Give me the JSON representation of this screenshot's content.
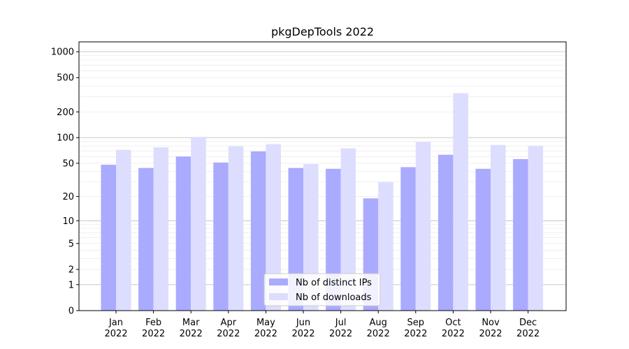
{
  "chart_data": {
    "type": "bar",
    "title": "pkgDepTools 2022",
    "xlabel": "",
    "ylabel": "",
    "y_scale": "log1p",
    "ylim": [
      0,
      1300
    ],
    "y_ticks": [
      0,
      1,
      2,
      5,
      10,
      20,
      50,
      100,
      200,
      500,
      1000
    ],
    "y_tick_labels": [
      "0",
      "1",
      "2",
      "5",
      "10",
      "20",
      "50",
      "100",
      "200",
      "500",
      "1000"
    ],
    "grid": true,
    "legend_position": "bottom-center",
    "categories": [
      "Jan\n2022",
      "Feb\n2022",
      "Mar\n2022",
      "Apr\n2022",
      "May\n2022",
      "Jun\n2022",
      "Jul\n2022",
      "Aug\n2022",
      "Sep\n2022",
      "Oct\n2022",
      "Nov\n2022",
      "Dec\n2022"
    ],
    "series": [
      {
        "name": "Nb of distinct IPs",
        "color": "#aaaaff",
        "values": [
          48,
          44,
          60,
          51,
          69,
          44,
          43,
          19,
          45,
          63,
          43,
          56
        ]
      },
      {
        "name": "Nb of downloads",
        "color": "#ddddff",
        "values": [
          72,
          77,
          102,
          79,
          84,
          49,
          75,
          30,
          89,
          330,
          82,
          80
        ]
      }
    ]
  }
}
